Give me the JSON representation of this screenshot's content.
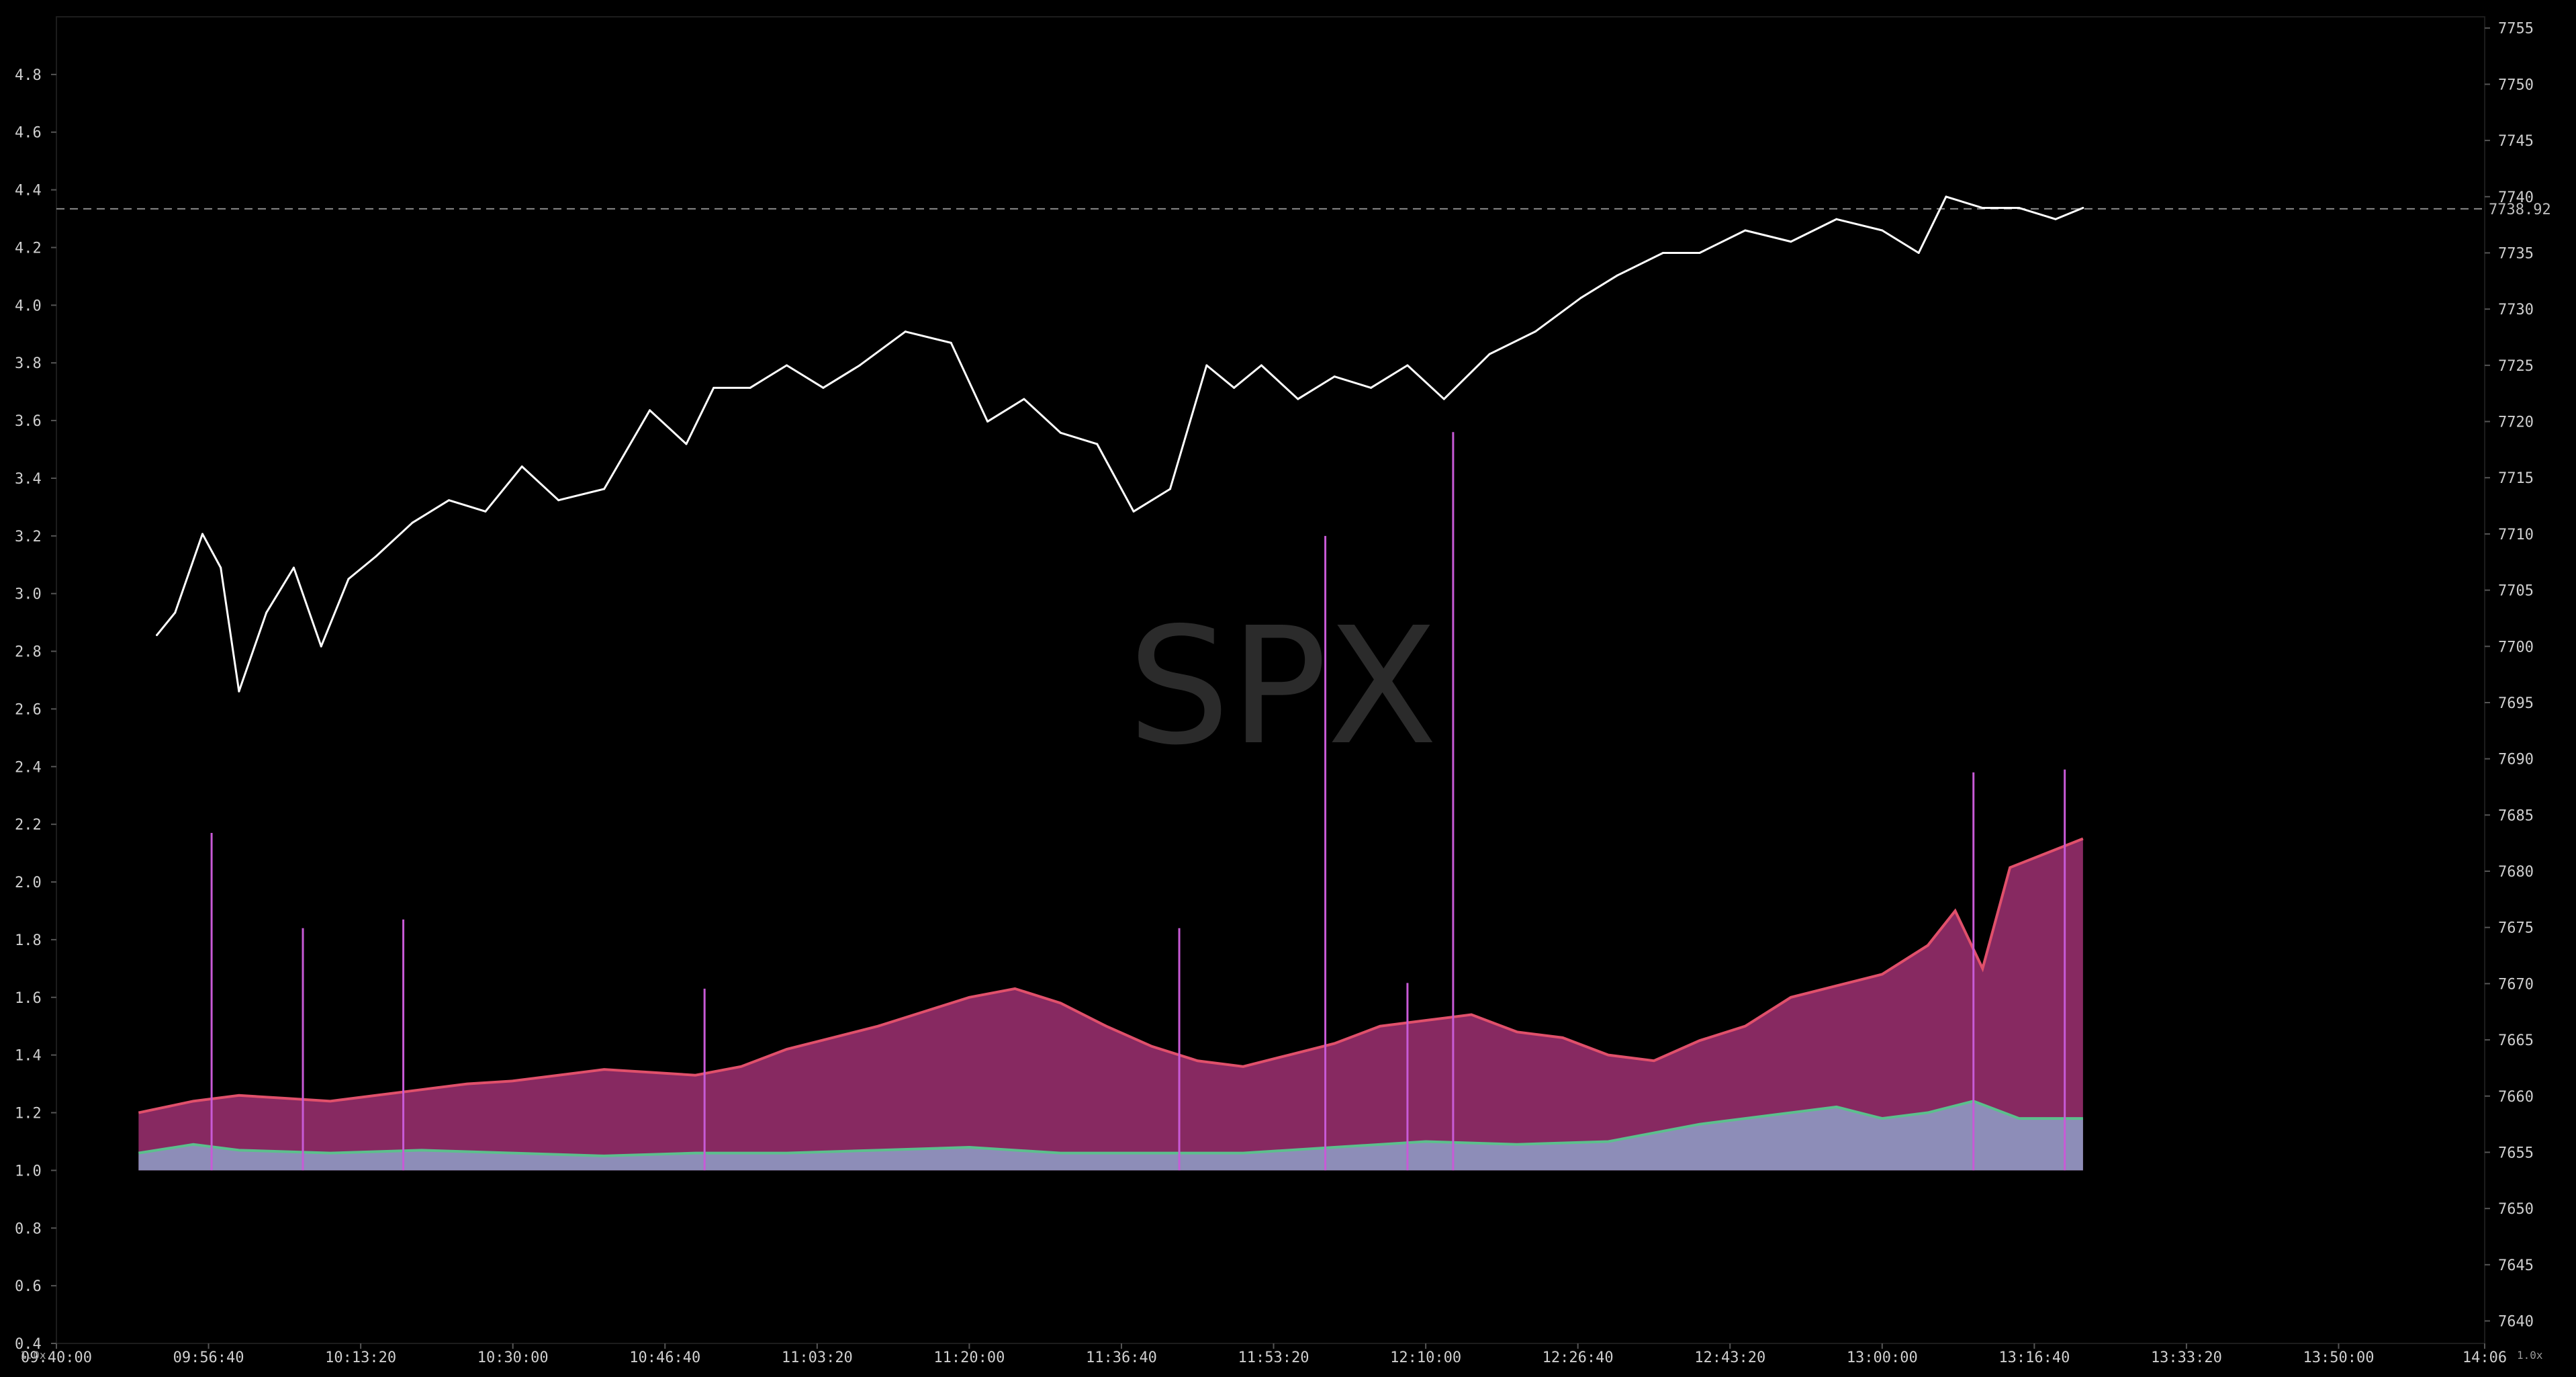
{
  "watermark": "SPX",
  "corner_labels": {
    "left": "1.0x",
    "right": "1.0x"
  },
  "chart_data": {
    "type": "line",
    "title": "",
    "xlabel": "",
    "ylabel": "",
    "grid": false,
    "x_axis": {
      "range": [
        "09:40:00",
        "14:06"
      ],
      "tick_labels": [
        "09:40:00",
        "09:56:40",
        "10:13:20",
        "10:30:00",
        "10:46:40",
        "11:03:20",
        "11:20:00",
        "11:36:40",
        "11:53:20",
        "12:10:00",
        "12:26:40",
        "12:43:20",
        "13:00:00",
        "13:16:40",
        "13:33:20",
        "13:50:00",
        "14:06"
      ]
    },
    "left_axis": {
      "range": [
        0.4,
        5.0
      ],
      "tick_labels": [
        "0.4",
        "0.6",
        "0.8",
        "1.0",
        "1.2",
        "1.4",
        "1.6",
        "1.8",
        "2.0",
        "2.2",
        "2.4",
        "2.6",
        "2.8",
        "3.0",
        "3.2",
        "3.4",
        "3.6",
        "3.8",
        "4.0",
        "4.2",
        "4.4",
        "4.6",
        "4.8"
      ]
    },
    "right_axis": {
      "range": [
        7638,
        7756
      ],
      "tick_labels": [
        "7640",
        "7645",
        "7650",
        "7655",
        "7660",
        "7665",
        "7670",
        "7675",
        "7680",
        "7685",
        "7690",
        "7695",
        "7700",
        "7705",
        "7710",
        "7715",
        "7720",
        "7725",
        "7730",
        "7735",
        "7740",
        "7745",
        "7750",
        "7755"
      ]
    },
    "last_price": {
      "value": 7738.92,
      "label": "7738.92"
    },
    "series": [
      {
        "kind": "price-line",
        "axis": "right",
        "color": "#ffffff",
        "x": [
          "09:51:00",
          "09:53:00",
          "09:56:00",
          "09:58:00",
          "10:00:00",
          "10:03:00",
          "10:06:00",
          "10:09:00",
          "10:12:00",
          "10:15:00",
          "10:19:00",
          "10:23:00",
          "10:27:00",
          "10:31:00",
          "10:35:00",
          "10:40:00",
          "10:45:00",
          "10:49:00",
          "10:52:00",
          "10:56:00",
          "11:00:00",
          "11:04:00",
          "11:08:00",
          "11:13:00",
          "11:18:00",
          "11:22:00",
          "11:26:00",
          "11:30:00",
          "11:34:00",
          "11:38:00",
          "11:42:00",
          "11:46:00",
          "11:49:00",
          "11:52:00",
          "11:56:00",
          "12:00:00",
          "12:04:00",
          "12:08:00",
          "12:12:00",
          "12:17:00",
          "12:22:00",
          "12:27:00",
          "12:31:00",
          "12:36:00",
          "12:40:00",
          "12:45:00",
          "12:50:00",
          "12:55:00",
          "13:00:00",
          "13:04:00",
          "13:07:00",
          "13:11:00",
          "13:15:00",
          "13:19:00",
          "13:22:00"
        ],
        "y": [
          7701,
          7703,
          7710,
          7707,
          7696,
          7703,
          7707,
          7700,
          7706,
          7708,
          7711,
          7713,
          7712,
          7716,
          7713,
          7714,
          7721,
          7718,
          7723,
          7723,
          7725,
          7723,
          7725,
          7728,
          7727,
          7720,
          7722,
          7719,
          7718,
          7712,
          7714,
          7725,
          7723,
          7725,
          7722,
          7724,
          7723,
          7725,
          7722,
          7726,
          7728,
          7731,
          7733,
          7735,
          7735,
          7737,
          7736,
          7738,
          7737,
          7735,
          7740,
          7739,
          7739,
          7738,
          7739
        ]
      },
      {
        "kind": "volume-area",
        "axis": "left",
        "name": "",
        "color": "#8e2b66",
        "edge_color": "#e0506b",
        "x": [
          "09:49:00",
          "09:55:00",
          "10:00:00",
          "10:05:00",
          "10:10:00",
          "10:15:00",
          "10:20:00",
          "10:25:00",
          "10:30:00",
          "10:35:00",
          "10:40:00",
          "10:45:00",
          "10:50:00",
          "10:55:00",
          "11:00:00",
          "11:05:00",
          "11:10:00",
          "11:15:00",
          "11:20:00",
          "11:25:00",
          "11:30:00",
          "11:35:00",
          "11:40:00",
          "11:45:00",
          "11:50:00",
          "11:55:00",
          "12:00:00",
          "12:05:00",
          "12:10:00",
          "12:15:00",
          "12:20:00",
          "12:25:00",
          "12:30:00",
          "12:35:00",
          "12:40:00",
          "12:45:00",
          "12:50:00",
          "12:55:00",
          "13:00:00",
          "13:05:00",
          "13:08:00",
          "13:11:00",
          "13:14:00",
          "13:18:00",
          "13:22:00"
        ],
        "y": [
          1.2,
          1.24,
          1.26,
          1.25,
          1.24,
          1.26,
          1.28,
          1.3,
          1.31,
          1.33,
          1.35,
          1.34,
          1.33,
          1.36,
          1.42,
          1.46,
          1.5,
          1.55,
          1.6,
          1.63,
          1.58,
          1.5,
          1.43,
          1.38,
          1.36,
          1.4,
          1.44,
          1.5,
          1.52,
          1.54,
          1.48,
          1.46,
          1.4,
          1.38,
          1.45,
          1.5,
          1.6,
          1.64,
          1.68,
          1.78,
          1.9,
          1.7,
          2.05,
          2.1,
          2.15
        ]
      },
      {
        "kind": "volume-area",
        "axis": "left",
        "name": "",
        "color": "#8d92bd",
        "edge_color": "#5cbf8d",
        "x": [
          "09:49:00",
          "09:55:00",
          "10:00:00",
          "10:10:00",
          "10:20:00",
          "10:30:00",
          "10:40:00",
          "10:50:00",
          "11:00:00",
          "11:10:00",
          "11:20:00",
          "11:30:00",
          "11:40:00",
          "11:50:00",
          "12:00:00",
          "12:10:00",
          "12:20:00",
          "12:30:00",
          "12:40:00",
          "12:45:00",
          "12:50:00",
          "12:55:00",
          "13:00:00",
          "13:05:00",
          "13:10:00",
          "13:15:00",
          "13:22:00"
        ],
        "y": [
          1.06,
          1.09,
          1.07,
          1.06,
          1.07,
          1.06,
          1.05,
          1.06,
          1.06,
          1.07,
          1.08,
          1.06,
          1.06,
          1.06,
          1.08,
          1.1,
          1.09,
          1.1,
          1.16,
          1.18,
          1.2,
          1.22,
          1.18,
          1.2,
          1.24,
          1.18,
          1.18
        ]
      },
      {
        "kind": "spikes",
        "axis": "left",
        "color": "#c85ad6",
        "x": [
          "09:57:00",
          "10:07:00",
          "10:18:00",
          "10:51:00",
          "11:43:00",
          "11:59:00",
          "12:08:00",
          "12:13:00",
          "13:10:00",
          "13:20:00"
        ],
        "y": [
          2.17,
          1.84,
          1.87,
          1.63,
          1.84,
          3.2,
          1.65,
          3.56,
          2.38,
          2.39
        ]
      }
    ]
  }
}
